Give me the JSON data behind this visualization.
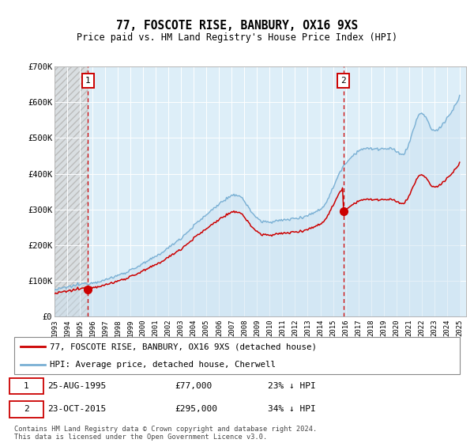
{
  "title": "77, FOSCOTE RISE, BANBURY, OX16 9XS",
  "subtitle": "Price paid vs. HM Land Registry's House Price Index (HPI)",
  "ylim": [
    0,
    700000
  ],
  "xlim_start": 1993.0,
  "xlim_end": 2025.5,
  "hpi_color": "#7ab0d4",
  "hpi_fill_color": "#c8dff0",
  "price_color": "#cc0000",
  "sale1_x": 1995.65,
  "sale1_y": 77000,
  "sale2_x": 2015.81,
  "sale2_y": 295000,
  "legend_line1": "77, FOSCOTE RISE, BANBURY, OX16 9XS (detached house)",
  "legend_line2": "HPI: Average price, detached house, Cherwell",
  "footer": "Contains HM Land Registry data © Crown copyright and database right 2024.\nThis data is licensed under the Open Government Licence v3.0."
}
